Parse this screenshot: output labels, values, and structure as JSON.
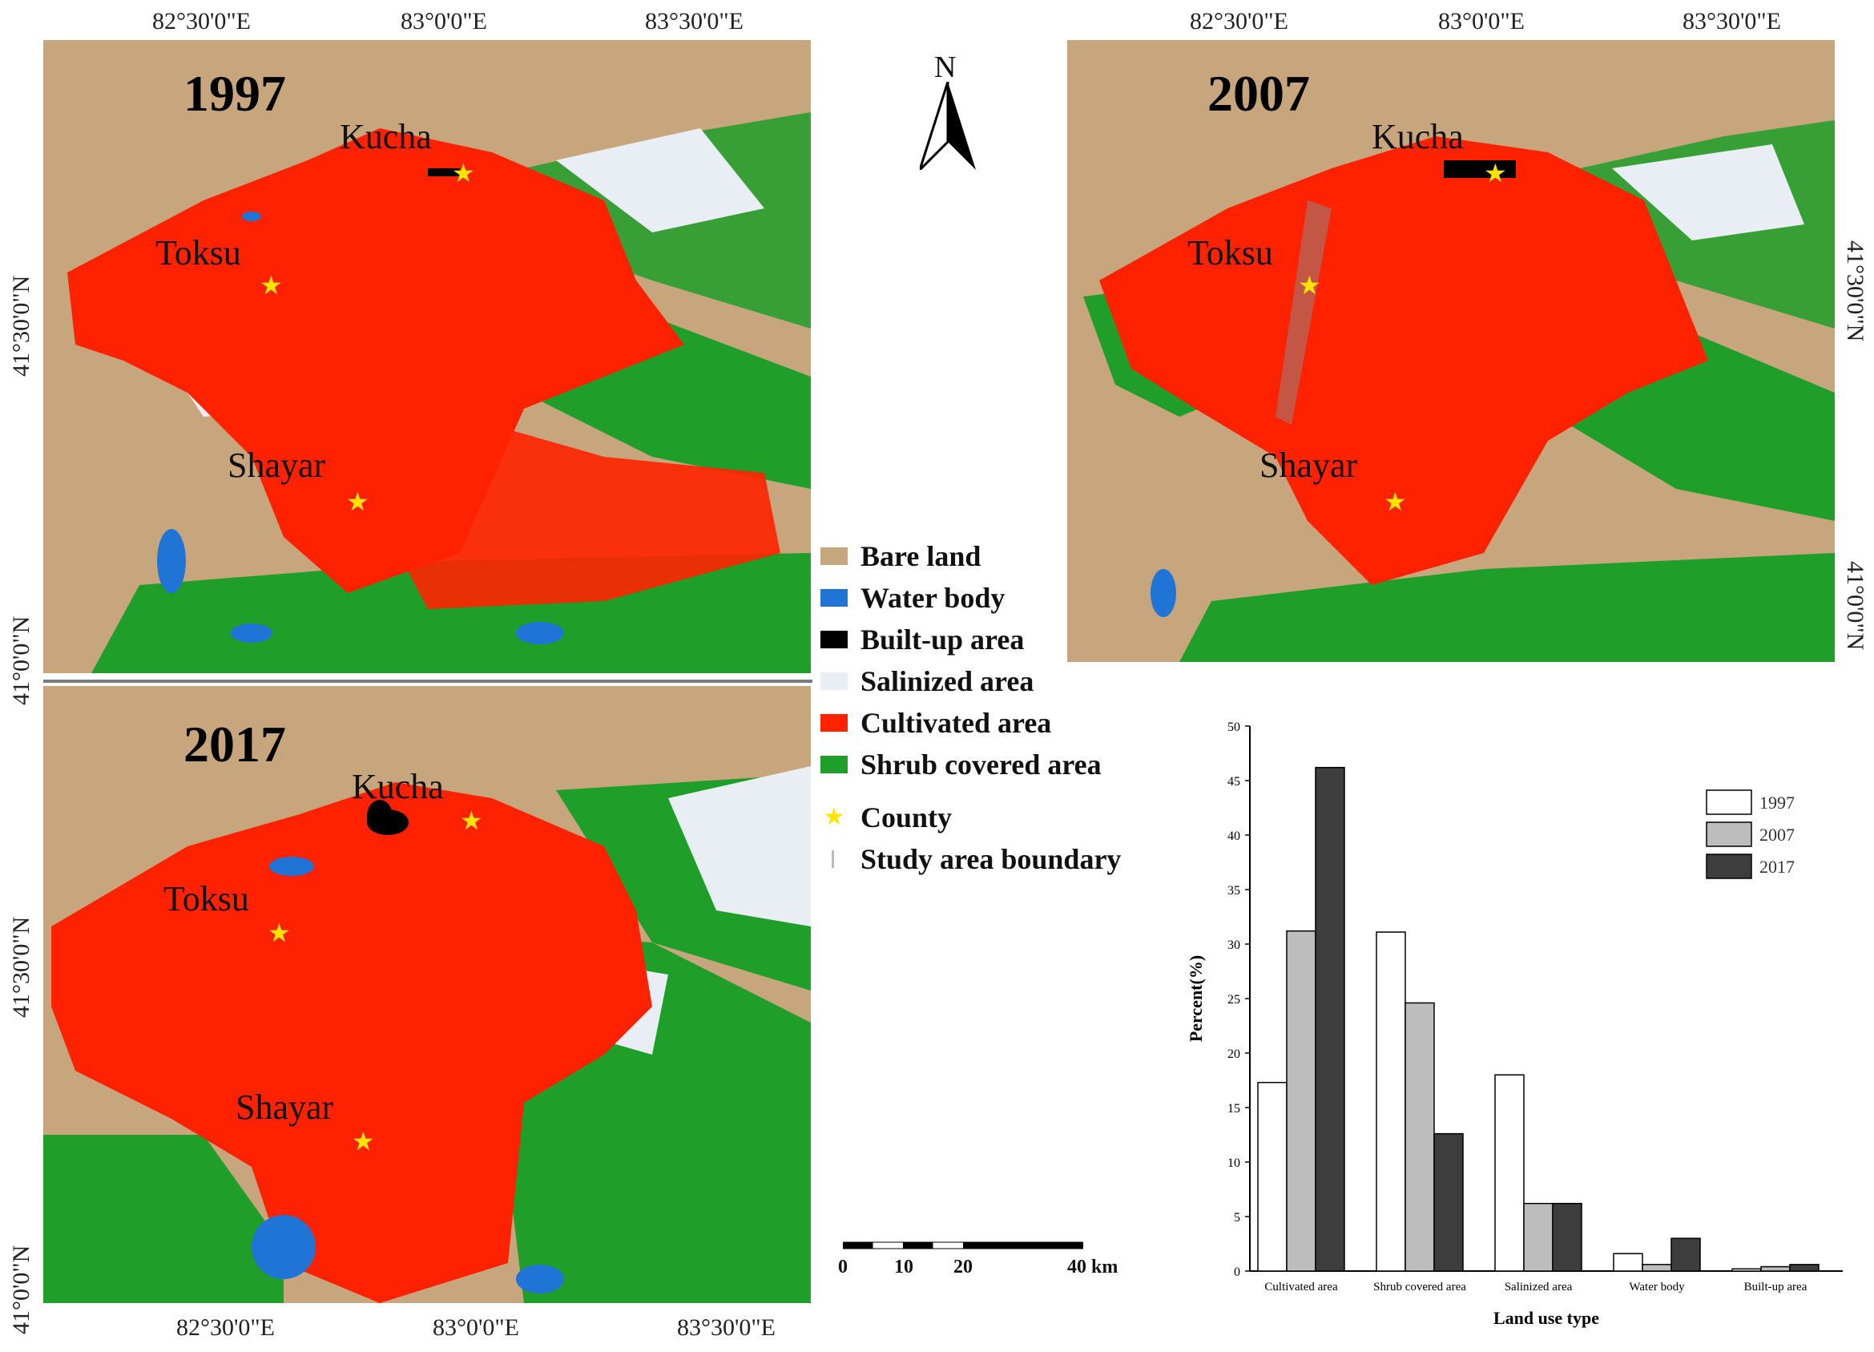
{
  "maps": {
    "m1997": {
      "year": "1997",
      "cities": {
        "kucha": "Kucha",
        "toksu": "Toksu",
        "shayar": "Shayar"
      }
    },
    "m2007": {
      "year": "2007",
      "cities": {
        "kucha": "Kucha",
        "toksu": "Toksu",
        "shayar": "Shayar"
      }
    },
    "m2017": {
      "year": "2017",
      "cities": {
        "kucha": "Kucha",
        "toksu": "Toksu",
        "shayar": "Shayar"
      }
    }
  },
  "coords": {
    "top": [
      "82°30'0\"E",
      "83°0'0\"E",
      "83°30'0\"E"
    ],
    "bottom": [
      "82°30'0\"E",
      "83°0'0\"E",
      "83°30'0\"E"
    ],
    "left": [
      "41°30'0\"N",
      "41°0'0\"N"
    ],
    "right": [
      "41°30'0\"N",
      "41°0'0\"N"
    ]
  },
  "north_arrow": "N",
  "legend": {
    "items": [
      {
        "label": "Bare land",
        "color": "#c8a67d"
      },
      {
        "label": "Water body",
        "color": "#1f74d6"
      },
      {
        "label": "Built-up area",
        "color": "#000000"
      },
      {
        "label": "Salinized area",
        "color": "#e8eef4"
      },
      {
        "label": "Cultivated area",
        "color": "#ff2200"
      },
      {
        "label": "Shrub covered area",
        "color": "#1f9e2a"
      }
    ],
    "county": "County",
    "boundary": "Study area boundary"
  },
  "scale_bar": {
    "labels": [
      "0",
      "10",
      "20",
      "40 km"
    ]
  },
  "colors": {
    "bare": "#c8a67d",
    "water": "#1f74d6",
    "built": "#000000",
    "salinized": "#e8eef4",
    "cultivated": "#ff2200",
    "shrub": "#1f9e2a",
    "county_star": "#ffe400"
  },
  "chart_data": {
    "type": "bar",
    "categories": [
      "Cultivated area",
      "Shrub covered area",
      "Salinized area",
      "Water body",
      "Built-up area"
    ],
    "series": [
      {
        "name": "1997",
        "values": [
          17.3,
          31.1,
          18.0,
          1.6,
          0.2
        ],
        "color": "#ffffff"
      },
      {
        "name": "2007",
        "values": [
          31.2,
          24.6,
          6.2,
          0.6,
          0.4
        ],
        "color": "#bdbdbd"
      },
      {
        "name": "2017",
        "values": [
          46.2,
          12.6,
          6.2,
          3.0,
          0.6
        ],
        "color": "#3d3d3d"
      }
    ],
    "xlabel": "Land use type",
    "ylabel": "Percent(%)",
    "ylim": [
      0,
      50
    ],
    "yticks": [
      "0",
      "5",
      "10",
      "15",
      "20",
      "25",
      "30",
      "35",
      "40",
      "45",
      "50"
    ],
    "legend_position": "top-right"
  }
}
